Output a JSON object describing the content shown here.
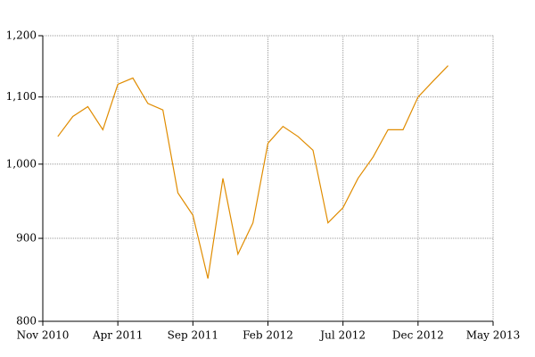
{
  "chart_data": {
    "type": "line",
    "log_scale": true,
    "grid": true,
    "x": [
      "2010-12",
      "2011-01",
      "2011-02",
      "2011-03",
      "2011-04",
      "2011-05",
      "2011-06",
      "2011-07",
      "2011-08",
      "2011-09",
      "2011-10",
      "2011-11",
      "2011-12",
      "2012-01",
      "2012-02",
      "2012-03",
      "2012-04",
      "2012-05",
      "2012-06",
      "2012-07",
      "2012-08",
      "2012-09",
      "2012-10",
      "2012-11",
      "2012-12",
      "2013-01",
      "2013-02"
    ],
    "series": [
      {
        "color": "#e08c00",
        "values": [
          1040,
          1070,
          1085,
          1050,
          1120,
          1130,
          1090,
          1080,
          960,
          930,
          850,
          980,
          880,
          920,
          1030,
          1055,
          1040,
          1020,
          920,
          940,
          980,
          1010,
          1050,
          1050,
          1100,
          1125,
          1150
        ]
      }
    ],
    "xlim": [
      "2010-11",
      "2013-05"
    ],
    "xticks": [
      {
        "value": "2010-11",
        "label": "Nov 2010"
      },
      {
        "value": "2011-04",
        "label": "Apr 2011"
      },
      {
        "value": "2011-09",
        "label": "Sep 2011"
      },
      {
        "value": "2012-02",
        "label": "Feb 2012"
      },
      {
        "value": "2012-07",
        "label": "Jul 2012"
      },
      {
        "value": "2012-12",
        "label": "Dec 2012"
      },
      {
        "value": "2013-05",
        "label": "May 2013"
      }
    ],
    "ylim": [
      800,
      1200
    ],
    "yticks": [
      800,
      900,
      {
        "value": 1000,
        "label": "1,000"
      },
      {
        "value": 1100,
        "label": "1,100"
      },
      {
        "value": 1200,
        "label": "1,200"
      }
    ]
  }
}
